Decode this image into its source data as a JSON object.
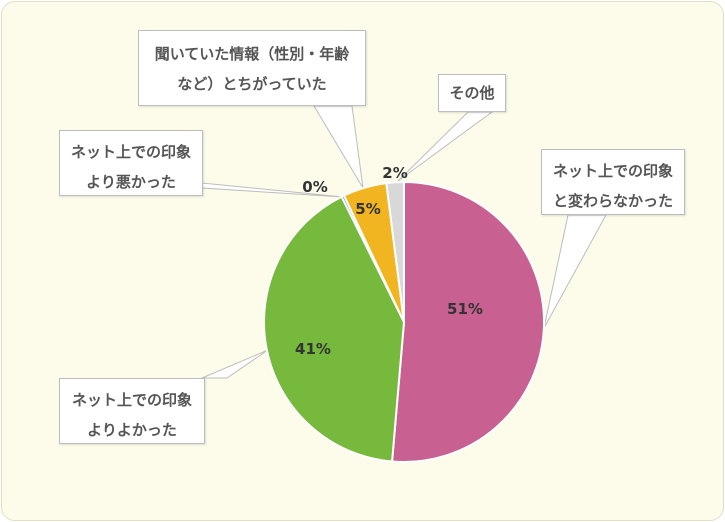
{
  "chart_data": {
    "type": "pie",
    "title": "",
    "slices": [
      {
        "label_lines": [
          "ネット上での印象",
          "と変わらなかった"
        ],
        "value": 51,
        "value_label": "51%",
        "color": "#c86191"
      },
      {
        "label_lines": [
          "ネット上での印象",
          "よりよかった"
        ],
        "value": 41,
        "value_label": "41%",
        "color": "#77b93c"
      },
      {
        "label_lines": [
          "ネット上での印象",
          "より悪かった"
        ],
        "value": 0.3,
        "value_label": "0%",
        "color": "#4f81bd"
      },
      {
        "label_lines": [
          "聞いていた情報（性別・年齢",
          "など）とちがっていた"
        ],
        "value": 5,
        "value_label": "5%",
        "color": "#f0b521"
      },
      {
        "label_lines": [
          "その他"
        ],
        "value": 2,
        "value_label": "2%",
        "color": "#d8d8d8"
      }
    ]
  }
}
